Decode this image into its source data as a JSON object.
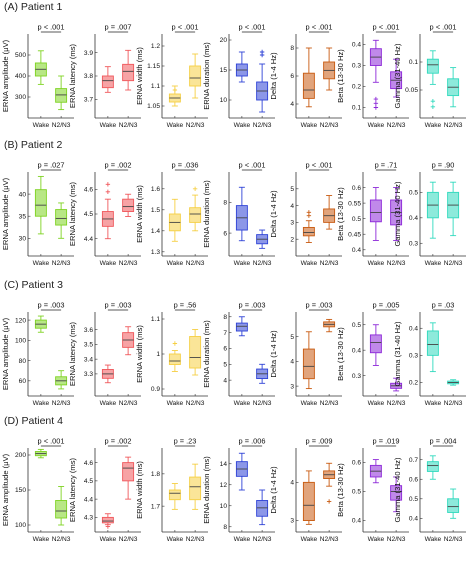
{
  "panels": [
    {
      "label": "(A)  Patient 1"
    },
    {
      "label": "(B)  Patient 2"
    },
    {
      "label": "(C)  Patient 3"
    },
    {
      "label": "(D)  Patient 4"
    }
  ],
  "chart_data": [
    {
      "type": "box",
      "panel": "A",
      "ylabel": "ERNA amplitude (μV)",
      "color": "#7ed321",
      "categories": [
        "Wake",
        "N2/N3"
      ],
      "ylim": [
        200,
        600
      ],
      "yticks": [
        300,
        400,
        500
      ],
      "p_value": "p < .001",
      "boxes": [
        {
          "min": 360,
          "q1": 400,
          "median": 432,
          "q3": 462,
          "max": 520
        },
        {
          "min": 240,
          "q1": 275,
          "median": 310,
          "q3": 340,
          "max": 400
        }
      ],
      "outliers": [
        [],
        []
      ]
    },
    {
      "type": "box",
      "panel": "A",
      "ylabel": "ERNA latency (ms)",
      "color": "#f0575b",
      "categories": [
        "Wake",
        "N2/N3"
      ],
      "ylim": [
        3.62,
        3.98
      ],
      "yticks": [
        3.7,
        3.8,
        3.9
      ],
      "p_value": "p = .007",
      "boxes": [
        {
          "min": 3.73,
          "q1": 3.75,
          "median": 3.78,
          "q3": 3.8,
          "max": 3.84
        },
        {
          "min": 3.74,
          "q1": 3.78,
          "median": 3.82,
          "q3": 3.85,
          "max": 3.91
        }
      ],
      "outliers": [
        [],
        []
      ]
    },
    {
      "type": "box",
      "panel": "A",
      "ylabel": "ERNA width (ms)",
      "color": "#f5cf43",
      "categories": [
        "Wake",
        "N2/N3"
      ],
      "ylim": [
        1.02,
        1.23
      ],
      "yticks": [
        1.05,
        1.1,
        1.15,
        1.2
      ],
      "p_value": "p < .001",
      "boxes": [
        {
          "min": 1.05,
          "q1": 1.06,
          "median": 1.07,
          "q3": 1.08,
          "max": 1.1
        },
        {
          "min": 1.07,
          "q1": 1.1,
          "median": 1.12,
          "q3": 1.15,
          "max": 1.18
        }
      ],
      "outliers": [
        [
          1.09
        ],
        []
      ]
    },
    {
      "type": "box",
      "panel": "A",
      "ylabel": "ERNA duration (ms)",
      "color": "#2e42d6",
      "categories": [
        "Wake",
        "N2/N3"
      ],
      "ylim": [
        7,
        21
      ],
      "yticks": [
        10,
        15,
        20
      ],
      "p_value": "p < .001",
      "boxes": [
        {
          "min": 13,
          "q1": 14,
          "median": 15,
          "q3": 16,
          "max": 18
        },
        {
          "min": 8,
          "q1": 10,
          "median": 11.5,
          "q3": 13,
          "max": 16
        }
      ],
      "outliers": [
        [],
        [
          17.5,
          18
        ]
      ]
    },
    {
      "type": "box",
      "panel": "A",
      "ylabel": "Delta (1-4 Hz)",
      "color": "#c85a10",
      "categories": [
        "Wake",
        "N2/N3"
      ],
      "ylim": [
        3,
        9
      ],
      "yticks": [
        4,
        6,
        8
      ],
      "p_value": "p < .001",
      "boxes": [
        {
          "min": 3.8,
          "q1": 4.4,
          "median": 5,
          "q3": 6.2,
          "max": 8
        },
        {
          "min": 5,
          "q1": 5.8,
          "median": 6.4,
          "q3": 7,
          "max": 8
        }
      ],
      "outliers": [
        [],
        []
      ]
    },
    {
      "type": "box",
      "panel": "A",
      "ylabel": "Beta (13-30 Hz)",
      "color": "#8c28d8",
      "categories": [
        "Wake",
        "N2/N3"
      ],
      "ylim": [
        0.05,
        0.45
      ],
      "yticks": [
        0.1,
        0.2,
        0.3,
        0.4
      ],
      "p_value": "p < .001",
      "boxes": [
        {
          "min": 0.22,
          "q1": 0.3,
          "median": 0.34,
          "q3": 0.38,
          "max": 0.42
        },
        {
          "min": 0.15,
          "q1": 0.19,
          "median": 0.23,
          "q3": 0.27,
          "max": 0.33
        }
      ],
      "outliers": [
        [
          0.1,
          0.12,
          0.14
        ],
        []
      ]
    },
    {
      "type": "box",
      "panel": "A",
      "ylabel": "Gamma (31-40 Hz)",
      "color": "#2fd9bd",
      "categories": [
        "Wake",
        "N2/N3"
      ],
      "ylim": [
        0.0,
        0.15
      ],
      "yticks": [
        0.05,
        0.1
      ],
      "p_value": "p < .001",
      "boxes": [
        {
          "min": 0.06,
          "q1": 0.08,
          "median": 0.095,
          "q3": 0.105,
          "max": 0.12
        },
        {
          "min": 0.02,
          "q1": 0.04,
          "median": 0.055,
          "q3": 0.07,
          "max": 0.09
        }
      ],
      "outliers": [
        [
          0.02,
          0.03
        ],
        []
      ]
    },
    {
      "type": "box",
      "panel": "B",
      "ylabel": "ERNA amplitude (μV)",
      "color": "#7ed321",
      "categories": [
        "Wake",
        "N2/N3"
      ],
      "ylim": [
        26,
        45
      ],
      "yticks": [
        30,
        35,
        40
      ],
      "p_value": "p = .027",
      "boxes": [
        {
          "min": 31,
          "q1": 35,
          "median": 37.5,
          "q3": 41,
          "max": 44
        },
        {
          "min": 30,
          "q1": 33,
          "median": 34.5,
          "q3": 36.5,
          "max": 38
        }
      ],
      "outliers": [
        [],
        []
      ]
    },
    {
      "type": "box",
      "panel": "B",
      "ylabel": "ERNA latency (ms)",
      "color": "#f0575b",
      "categories": [
        "Wake",
        "N2/N3"
      ],
      "ylim": [
        4.33,
        4.67
      ],
      "yticks": [
        4.4,
        4.5,
        4.6
      ],
      "p_value": "p = .002",
      "boxes": [
        {
          "min": 4.4,
          "q1": 4.45,
          "median": 4.48,
          "q3": 4.51,
          "max": 4.56
        },
        {
          "min": 4.49,
          "q1": 4.51,
          "median": 4.53,
          "q3": 4.56,
          "max": 4.58
        }
      ],
      "outliers": [
        [
          4.59,
          4.62
        ],
        []
      ]
    },
    {
      "type": "box",
      "panel": "B",
      "ylabel": "ERNA width (ms)",
      "color": "#f5cf43",
      "categories": [
        "Wake",
        "N2/N3"
      ],
      "ylim": [
        1.28,
        1.68
      ],
      "yticks": [
        1.3,
        1.4,
        1.5,
        1.6
      ],
      "p_value": "p = .036",
      "boxes": [
        {
          "min": 1.35,
          "q1": 1.4,
          "median": 1.44,
          "q3": 1.48,
          "max": 1.55
        },
        {
          "min": 1.4,
          "q1": 1.44,
          "median": 1.48,
          "q3": 1.51,
          "max": 1.57
        }
      ],
      "outliers": [
        [],
        [
          1.6
        ]
      ]
    },
    {
      "type": "box",
      "panel": "B",
      "ylabel": "ERNA duration (ms)",
      "color": "#2e42d6",
      "categories": [
        "Wake",
        "N2/N3"
      ],
      "ylim": [
        4.5,
        10
      ],
      "yticks": [
        6,
        8
      ],
      "p_value": "p < .001",
      "boxes": [
        {
          "min": 5.5,
          "q1": 6.2,
          "median": 7,
          "q3": 7.8,
          "max": 9
        },
        {
          "min": 5,
          "q1": 5.3,
          "median": 5.6,
          "q3": 5.9,
          "max": 6.2
        }
      ],
      "outliers": [
        [],
        []
      ]
    },
    {
      "type": "box",
      "panel": "B",
      "ylabel": "Delta (1-4 Hz)",
      "color": "#c85a10",
      "categories": [
        "Wake",
        "N2/N3"
      ],
      "ylim": [
        1,
        6
      ],
      "yticks": [
        2,
        3,
        4,
        5
      ],
      "p_value": "p < .001",
      "boxes": [
        {
          "min": 1.8,
          "q1": 2.2,
          "median": 2.4,
          "q3": 2.7,
          "max": 3.1
        },
        {
          "min": 2.6,
          "q1": 3.0,
          "median": 3.4,
          "q3": 3.8,
          "max": 4.6
        }
      ],
      "outliers": [
        [
          3.4,
          3.6
        ],
        []
      ]
    },
    {
      "type": "box",
      "panel": "B",
      "ylabel": "Beta (13-30 Hz)",
      "color": "#8c28d8",
      "categories": [
        "Wake",
        "N2/N3"
      ],
      "ylim": [
        0.38,
        0.65
      ],
      "yticks": [
        0.4,
        0.45,
        0.5,
        0.55,
        0.6
      ],
      "p_value": "p = .71",
      "boxes": [
        {
          "min": 0.43,
          "q1": 0.49,
          "median": 0.52,
          "q3": 0.56,
          "max": 0.6
        },
        {
          "min": 0.43,
          "q1": 0.48,
          "median": 0.52,
          "q3": 0.56,
          "max": 0.6
        }
      ],
      "outliers": [
        [],
        []
      ]
    },
    {
      "type": "box",
      "panel": "B",
      "ylabel": "Gamma (31-40 Hz)",
      "color": "#2fd9bd",
      "categories": [
        "Wake",
        "N2/N3"
      ],
      "ylim": [
        0.25,
        0.58
      ],
      "yticks": [
        0.3,
        0.4,
        0.5
      ],
      "p_value": "p = .90",
      "boxes": [
        {
          "min": 0.32,
          "q1": 0.4,
          "median": 0.45,
          "q3": 0.5,
          "max": 0.54
        },
        {
          "min": 0.33,
          "q1": 0.4,
          "median": 0.45,
          "q3": 0.5,
          "max": 0.54
        }
      ],
      "outliers": [
        [],
        []
      ]
    },
    {
      "type": "box",
      "panel": "C",
      "ylabel": "ERNA amplitude (μV)",
      "color": "#7ed321",
      "categories": [
        "Wake",
        "N2/N3"
      ],
      "ylim": [
        45,
        128
      ],
      "yticks": [
        60,
        80,
        100,
        120
      ],
      "p_value": "p = .003",
      "boxes": [
        {
          "min": 108,
          "q1": 112,
          "median": 116,
          "q3": 120,
          "max": 124
        },
        {
          "min": 52,
          "q1": 56,
          "median": 60,
          "q3": 64,
          "max": 70
        }
      ],
      "outliers": [
        [],
        []
      ]
    },
    {
      "type": "box",
      "panel": "C",
      "ylabel": "ERNA latency (ms)",
      "color": "#f0575b",
      "categories": [
        "Wake",
        "N2/N3"
      ],
      "ylim": [
        3.15,
        3.72
      ],
      "yticks": [
        3.3,
        3.4,
        3.5,
        3.6
      ],
      "p_value": "p = .003",
      "boxes": [
        {
          "min": 3.24,
          "q1": 3.27,
          "median": 3.3,
          "q3": 3.33,
          "max": 3.36
        },
        {
          "min": 3.43,
          "q1": 3.48,
          "median": 3.53,
          "q3": 3.58,
          "max": 3.62
        }
      ],
      "outliers": [
        [],
        []
      ]
    },
    {
      "type": "box",
      "panel": "C",
      "ylabel": "ERNA width (ms)",
      "color": "#f5cf43",
      "categories": [
        "Wake",
        "N2/N3"
      ],
      "ylim": [
        0.88,
        1.12
      ],
      "yticks": [
        0.9,
        1.0,
        1.1
      ],
      "p_value": "p = .56",
      "boxes": [
        {
          "min": 0.95,
          "q1": 0.97,
          "median": 0.98,
          "q3": 1.0,
          "max": 1.01
        },
        {
          "min": 0.94,
          "q1": 0.96,
          "median": 0.99,
          "q3": 1.05,
          "max": 1.07
        }
      ],
      "outliers": [
        [
          1.03
        ],
        []
      ]
    },
    {
      "type": "box",
      "panel": "C",
      "ylabel": "ERNA duration (ms)",
      "color": "#2e42d6",
      "categories": [
        "Wake",
        "N2/N3"
      ],
      "ylim": [
        3,
        8.3
      ],
      "yticks": [
        4,
        5,
        6,
        7,
        8
      ],
      "p_value": "p = .003",
      "boxes": [
        {
          "min": 6.8,
          "q1": 7.1,
          "median": 7.4,
          "q3": 7.6,
          "max": 8.0
        },
        {
          "min": 3.8,
          "q1": 4.1,
          "median": 4.4,
          "q3": 4.7,
          "max": 5.0
        }
      ],
      "outliers": [
        [],
        []
      ]
    },
    {
      "type": "box",
      "panel": "C",
      "ylabel": "Delta (1-4 Hz)",
      "color": "#c85a10",
      "categories": [
        "Wake",
        "N2/N3"
      ],
      "ylim": [
        2.6,
        6
      ],
      "yticks": [
        3,
        4,
        5
      ],
      "p_value": "p = .003",
      "boxes": [
        {
          "min": 2.9,
          "q1": 3.3,
          "median": 3.8,
          "q3": 4.5,
          "max": 5.2
        },
        {
          "min": 5.2,
          "q1": 5.4,
          "median": 5.5,
          "q3": 5.6,
          "max": 5.7
        }
      ],
      "outliers": [
        [],
        []
      ]
    },
    {
      "type": "box",
      "panel": "C",
      "ylabel": "Beta (13-30 Hz)",
      "color": "#8c28d8",
      "categories": [
        "Wake",
        "N2/N3"
      ],
      "ylim": [
        0.22,
        0.55
      ],
      "yticks": [
        0.3,
        0.4,
        0.5
      ],
      "p_value": "p = .005",
      "boxes": [
        {
          "min": 0.34,
          "q1": 0.39,
          "median": 0.43,
          "q3": 0.46,
          "max": 0.5
        },
        {
          "min": 0.24,
          "q1": 0.25,
          "median": 0.26,
          "q3": 0.27,
          "max": 0.29
        }
      ],
      "outliers": [
        [],
        []
      ]
    },
    {
      "type": "box",
      "panel": "C",
      "ylabel": "Gamma (31-40 Hz)",
      "color": "#2fd9bd",
      "categories": [
        "Wake",
        "N2/N3"
      ],
      "ylim": [
        0.15,
        0.46
      ],
      "yticks": [
        0.2,
        0.3,
        0.4
      ],
      "p_value": "p = .03",
      "boxes": [
        {
          "min": 0.24,
          "q1": 0.3,
          "median": 0.34,
          "q3": 0.39,
          "max": 0.42
        },
        {
          "min": 0.19,
          "q1": 0.195,
          "median": 0.2,
          "q3": 0.205,
          "max": 0.21
        }
      ],
      "outliers": [
        [],
        []
      ]
    },
    {
      "type": "box",
      "panel": "D",
      "ylabel": "ERNA amplitude (μV)",
      "color": "#7ed321",
      "categories": [
        "Wake",
        "N2/N3"
      ],
      "ylim": [
        90,
        210
      ],
      "yticks": [
        100,
        150,
        200
      ],
      "p_value": "p < .001",
      "boxes": [
        {
          "min": 196,
          "q1": 199,
          "median": 202,
          "q3": 205,
          "max": 208
        },
        {
          "min": 100,
          "q1": 110,
          "median": 120,
          "q3": 135,
          "max": 155
        }
      ],
      "outliers": [
        [],
        []
      ]
    },
    {
      "type": "box",
      "panel": "D",
      "ylabel": "ERNA latency (ms)",
      "color": "#f0575b",
      "categories": [
        "Wake",
        "N2/N3"
      ],
      "ylim": [
        4.22,
        4.68
      ],
      "yticks": [
        4.3,
        4.4,
        4.5,
        4.6
      ],
      "p_value": "p = .002",
      "boxes": [
        {
          "min": 4.26,
          "q1": 4.27,
          "median": 4.28,
          "q3": 4.3,
          "max": 4.32
        },
        {
          "min": 4.4,
          "q1": 4.5,
          "median": 4.57,
          "q3": 4.6,
          "max": 4.63
        }
      ],
      "outliers": [
        [
          4.25
        ],
        []
      ]
    },
    {
      "type": "box",
      "panel": "D",
      "ylabel": "ERNA width (ms)",
      "color": "#f5cf43",
      "categories": [
        "Wake",
        "N2/N3"
      ],
      "ylim": [
        1.62,
        1.88
      ],
      "yticks": [
        1.7,
        1.8
      ],
      "p_value": "p = .23",
      "boxes": [
        {
          "min": 1.69,
          "q1": 1.72,
          "median": 1.74,
          "q3": 1.75,
          "max": 1.77
        },
        {
          "min": 1.69,
          "q1": 1.72,
          "median": 1.76,
          "q3": 1.79,
          "max": 1.83
        }
      ],
      "outliers": [
        [],
        []
      ]
    },
    {
      "type": "box",
      "panel": "D",
      "ylabel": "ERNA duration (ms)",
      "color": "#2e42d6",
      "categories": [
        "Wake",
        "N2/N3"
      ],
      "ylim": [
        7.5,
        15.5
      ],
      "yticks": [
        8,
        10,
        12,
        14
      ],
      "p_value": "p = .006",
      "boxes": [
        {
          "min": 11.5,
          "q1": 12.8,
          "median": 13.5,
          "q3": 14.2,
          "max": 15
        },
        {
          "min": 8.2,
          "q1": 9,
          "median": 9.8,
          "q3": 10.5,
          "max": 11.5
        }
      ],
      "outliers": [
        [],
        []
      ]
    },
    {
      "type": "box",
      "panel": "D",
      "ylabel": "Delta (1-4 Hz)",
      "color": "#c85a10",
      "categories": [
        "Wake",
        "N2/N3"
      ],
      "ylim": [
        2.7,
        4.9
      ],
      "yticks": [
        3,
        4
      ],
      "p_value": "p = .009",
      "boxes": [
        {
          "min": 2.9,
          "q1": 3.0,
          "median": 3.4,
          "q3": 4.0,
          "max": 4.3
        },
        {
          "min": 3.9,
          "q1": 4.1,
          "median": 4.2,
          "q3": 4.3,
          "max": 4.5
        }
      ],
      "outliers": [
        [],
        [
          3.5
        ]
      ]
    },
    {
      "type": "box",
      "panel": "D",
      "ylabel": "Beta (13-30 Hz)",
      "color": "#8c28d8",
      "categories": [
        "Wake",
        "N2/N3"
      ],
      "ylim": [
        0.36,
        0.65
      ],
      "yticks": [
        0.4,
        0.5,
        0.6
      ],
      "p_value": "p = .019",
      "boxes": [
        {
          "min": 0.53,
          "q1": 0.55,
          "median": 0.57,
          "q3": 0.59,
          "max": 0.61
        },
        {
          "min": 0.43,
          "q1": 0.47,
          "median": 0.5,
          "q3": 0.52,
          "max": 0.55
        }
      ],
      "outliers": [
        [],
        []
      ]
    },
    {
      "type": "box",
      "panel": "D",
      "ylabel": "Gamma (31-40 Hz)",
      "color": "#2fd9bd",
      "categories": [
        "Wake",
        "N2/N3"
      ],
      "ylim": [
        0.33,
        0.76
      ],
      "yticks": [
        0.4,
        0.5,
        0.6,
        0.7
      ],
      "p_value": "p = .004",
      "boxes": [
        {
          "min": 0.6,
          "q1": 0.64,
          "median": 0.67,
          "q3": 0.69,
          "max": 0.72
        },
        {
          "min": 0.4,
          "q1": 0.43,
          "median": 0.46,
          "q3": 0.5,
          "max": 0.55
        }
      ],
      "outliers": [
        [],
        []
      ]
    }
  ]
}
